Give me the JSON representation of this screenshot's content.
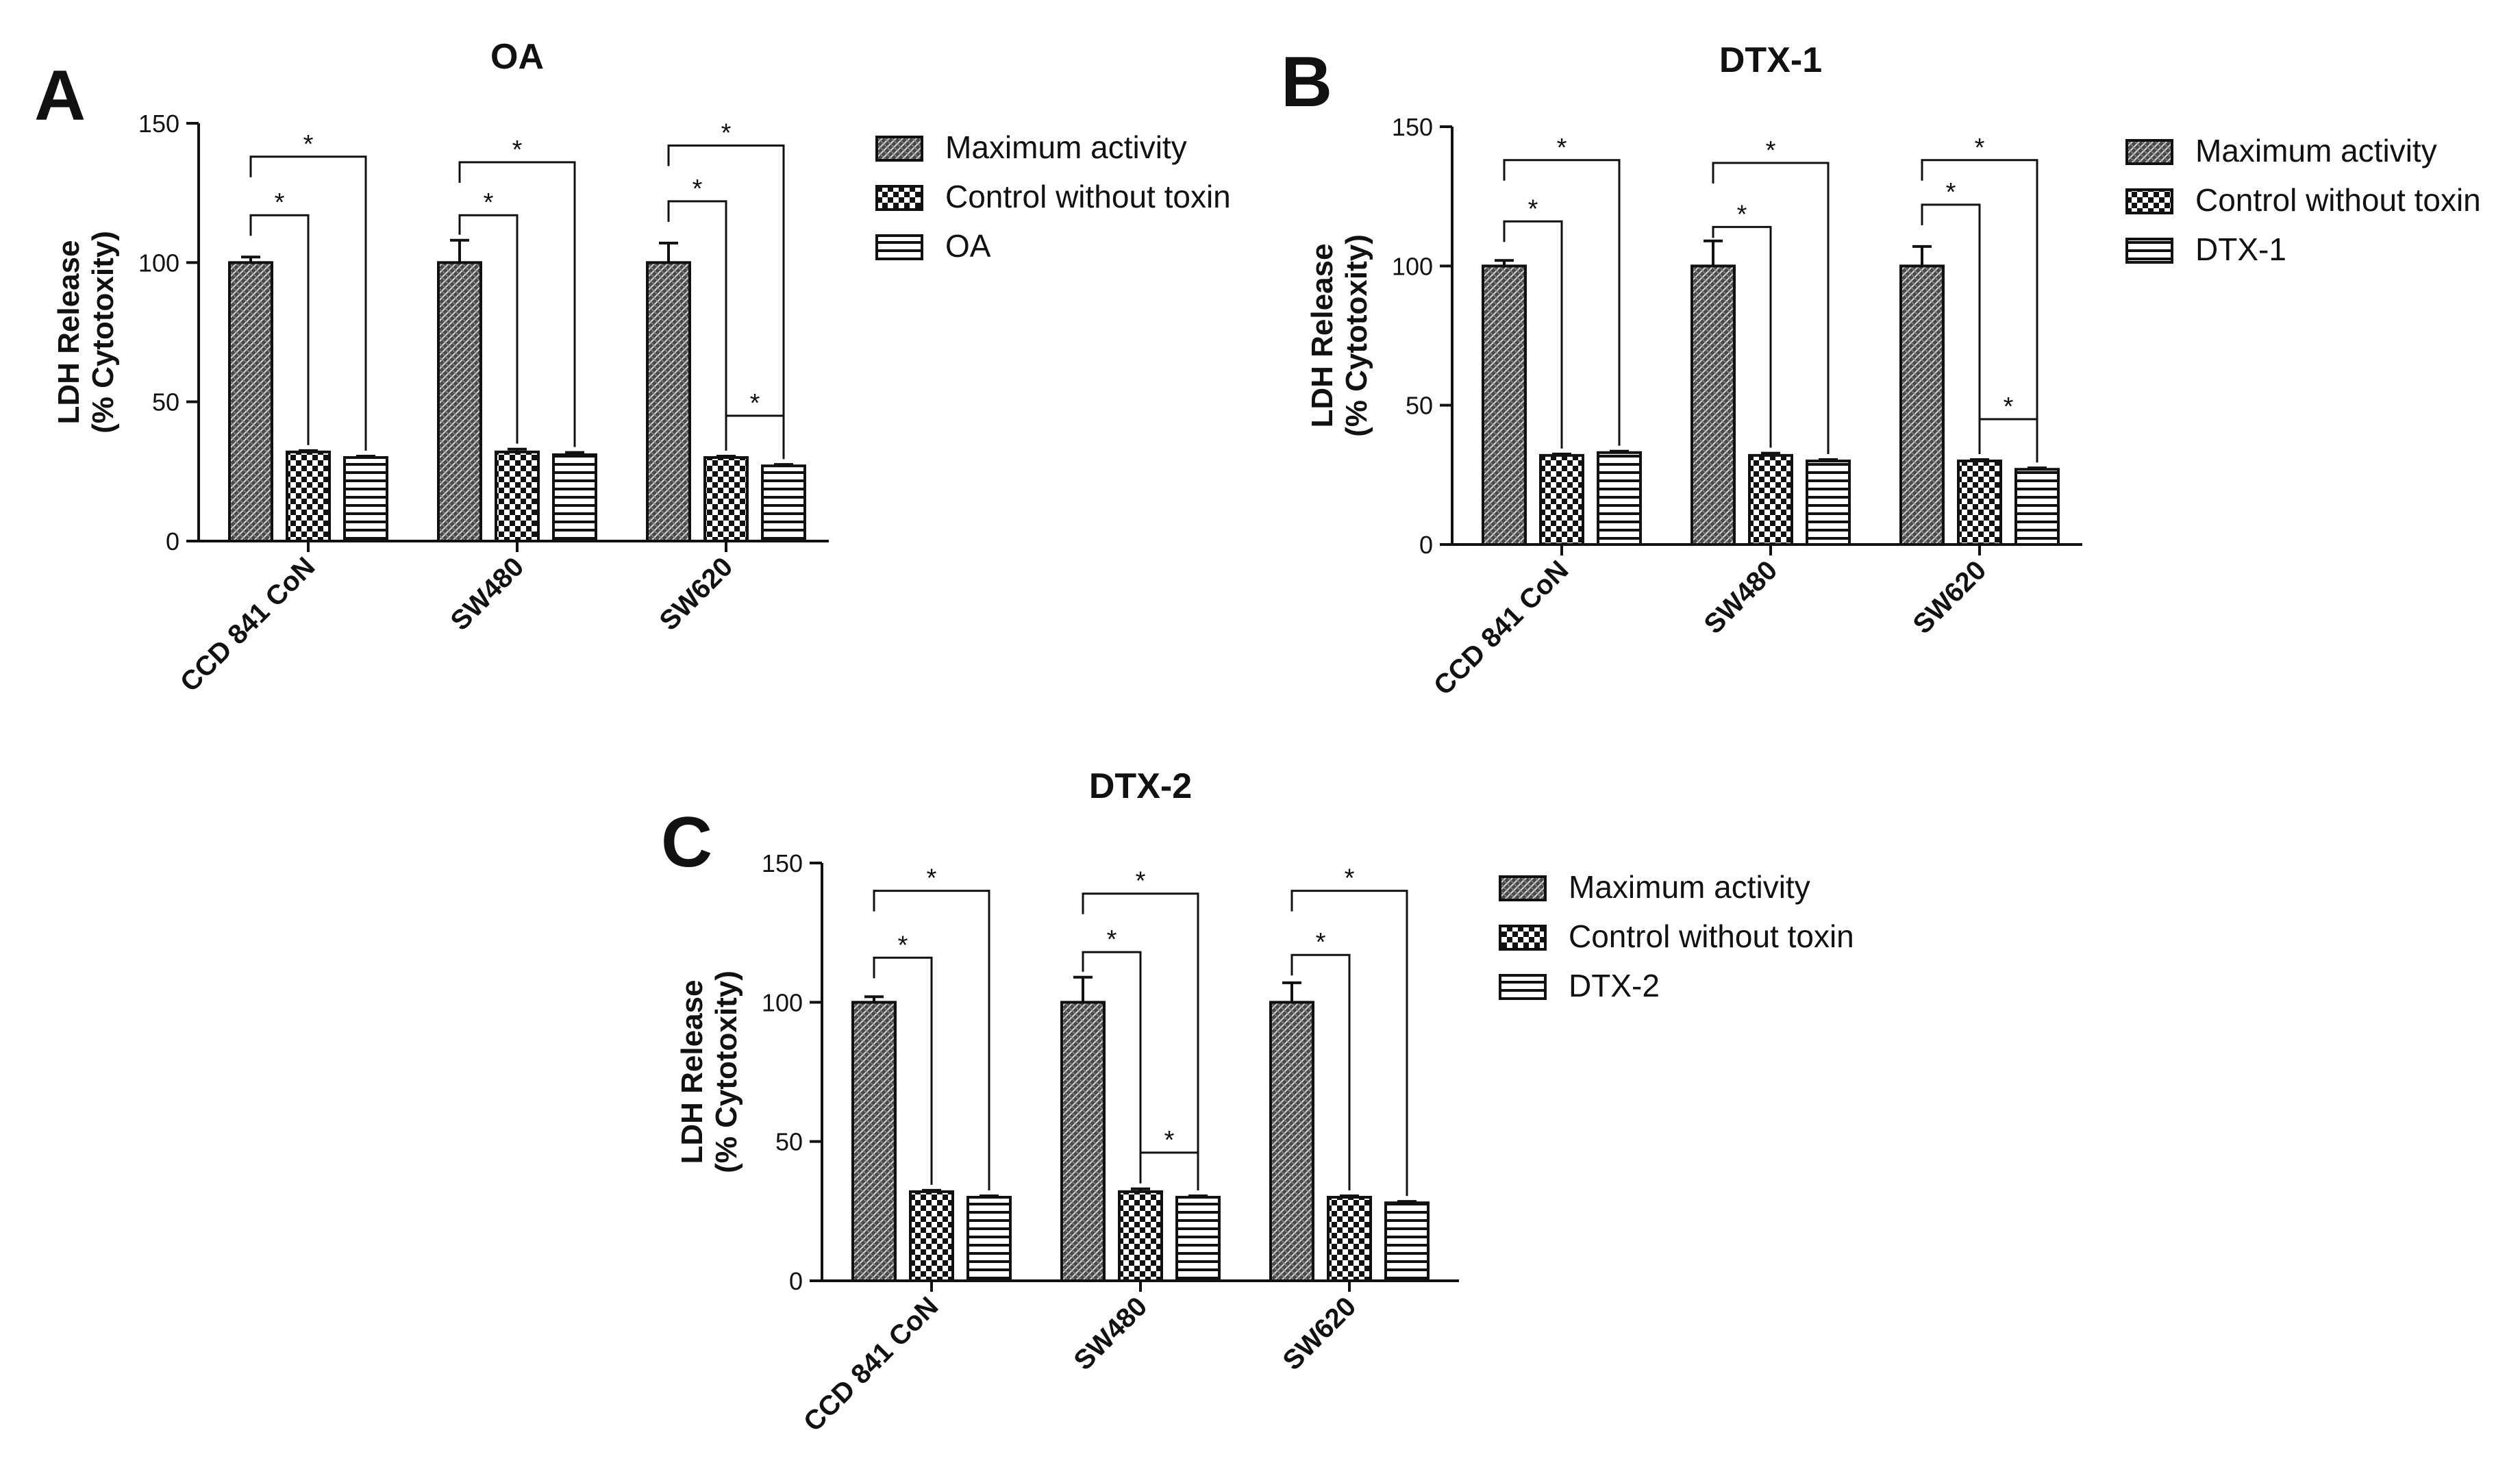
{
  "figure": {
    "colors": {
      "ink": "#111111",
      "bar_dark": "#4a4a4a",
      "background": "#ffffff"
    },
    "patterns": [
      "diagonal-crosshatch",
      "checkerboard",
      "horizontal-lines"
    ]
  },
  "chart_data": [
    {
      "panel": "A",
      "type": "bar",
      "title": "OA",
      "ylabel": [
        "LDH Release",
        "(% Cytotoxity)"
      ],
      "xlabel": "",
      "ylim": [
        0,
        150
      ],
      "yticks": [
        0,
        50,
        100,
        150
      ],
      "categories": [
        "CCD 841 CoN",
        "SW480",
        "SW620"
      ],
      "series": [
        {
          "name": "Maximum activity",
          "values": [
            100,
            100,
            100
          ],
          "errors": [
            2,
            8,
            7
          ]
        },
        {
          "name": "Control without toxin",
          "values": [
            32,
            32,
            30
          ],
          "errors": [
            0.5,
            1,
            0.5
          ]
        },
        {
          "name": "OA",
          "values": [
            30,
            31,
            27
          ],
          "errors": [
            0.5,
            0.8,
            0.5
          ]
        }
      ],
      "significance": [
        {
          "category": 0,
          "from": 0,
          "to": 1,
          "y": 117,
          "label": "*"
        },
        {
          "category": 0,
          "from": 0,
          "to": 2,
          "y": 138,
          "label": "*"
        },
        {
          "category": 1,
          "from": 0,
          "to": 1,
          "y": 117,
          "label": "*"
        },
        {
          "category": 1,
          "from": 0,
          "to": 2,
          "y": 136,
          "label": "*"
        },
        {
          "category": 2,
          "from": 0,
          "to": 1,
          "y": 122,
          "label": "*"
        },
        {
          "category": 2,
          "from": 0,
          "to": 2,
          "y": 142,
          "label": "*"
        },
        {
          "category": 2,
          "from": 1,
          "to": 2,
          "y": 45,
          "label": "*"
        }
      ]
    },
    {
      "panel": "B",
      "type": "bar",
      "title": "DTX-1",
      "ylabel": [
        "LDH Release",
        "(% Cytotoxity)"
      ],
      "xlabel": "",
      "ylim": [
        0,
        150
      ],
      "yticks": [
        0,
        50,
        100,
        150
      ],
      "categories": [
        "CCD 841 CoN",
        "SW480",
        "SW620"
      ],
      "series": [
        {
          "name": "Maximum activity",
          "values": [
            100,
            100,
            100
          ],
          "errors": [
            2,
            9,
            7
          ]
        },
        {
          "name": "Control without toxin",
          "values": [
            32,
            32,
            30
          ],
          "errors": [
            0.5,
            0.8,
            0.5
          ]
        },
        {
          "name": "DTX-1",
          "values": [
            33,
            30,
            27
          ],
          "errors": [
            0.5,
            0.5,
            0.5
          ]
        }
      ],
      "significance": [
        {
          "category": 0,
          "from": 0,
          "to": 1,
          "y": 116,
          "label": "*"
        },
        {
          "category": 0,
          "from": 0,
          "to": 2,
          "y": 138,
          "label": "*"
        },
        {
          "category": 1,
          "from": 0,
          "to": 1,
          "y": 114,
          "label": "*"
        },
        {
          "category": 1,
          "from": 0,
          "to": 2,
          "y": 137,
          "label": "*"
        },
        {
          "category": 2,
          "from": 0,
          "to": 1,
          "y": 122,
          "label": "*"
        },
        {
          "category": 2,
          "from": 0,
          "to": 2,
          "y": 138,
          "label": "*"
        },
        {
          "category": 2,
          "from": 1,
          "to": 2,
          "y": 45,
          "label": "*"
        }
      ]
    },
    {
      "panel": "C",
      "type": "bar",
      "title": "DTX-2",
      "ylabel": [
        "LDH Release",
        "(% Cytotoxity)"
      ],
      "xlabel": "",
      "ylim": [
        0,
        150
      ],
      "yticks": [
        0,
        50,
        100,
        150
      ],
      "categories": [
        "CCD 841 CoN",
        "SW480",
        "SW620"
      ],
      "series": [
        {
          "name": "Maximum activity",
          "values": [
            100,
            100,
            100
          ],
          "errors": [
            2,
            9,
            7
          ]
        },
        {
          "name": "Control without toxin",
          "values": [
            32,
            32,
            30
          ],
          "errors": [
            0.5,
            1,
            0.5
          ]
        },
        {
          "name": "DTX-2",
          "values": [
            30,
            30,
            28
          ],
          "errors": [
            0.5,
            0.5,
            0.5
          ]
        }
      ],
      "significance": [
        {
          "category": 0,
          "from": 0,
          "to": 1,
          "y": 116,
          "label": "*"
        },
        {
          "category": 0,
          "from": 0,
          "to": 2,
          "y": 140,
          "label": "*"
        },
        {
          "category": 1,
          "from": 0,
          "to": 1,
          "y": 118,
          "label": "*"
        },
        {
          "category": 1,
          "from": 0,
          "to": 2,
          "y": 139,
          "label": "*"
        },
        {
          "category": 1,
          "from": 1,
          "to": 2,
          "y": 46,
          "label": "*"
        },
        {
          "category": 2,
          "from": 0,
          "to": 1,
          "y": 117,
          "label": "*"
        },
        {
          "category": 2,
          "from": 0,
          "to": 2,
          "y": 140,
          "label": "*"
        }
      ]
    }
  ]
}
